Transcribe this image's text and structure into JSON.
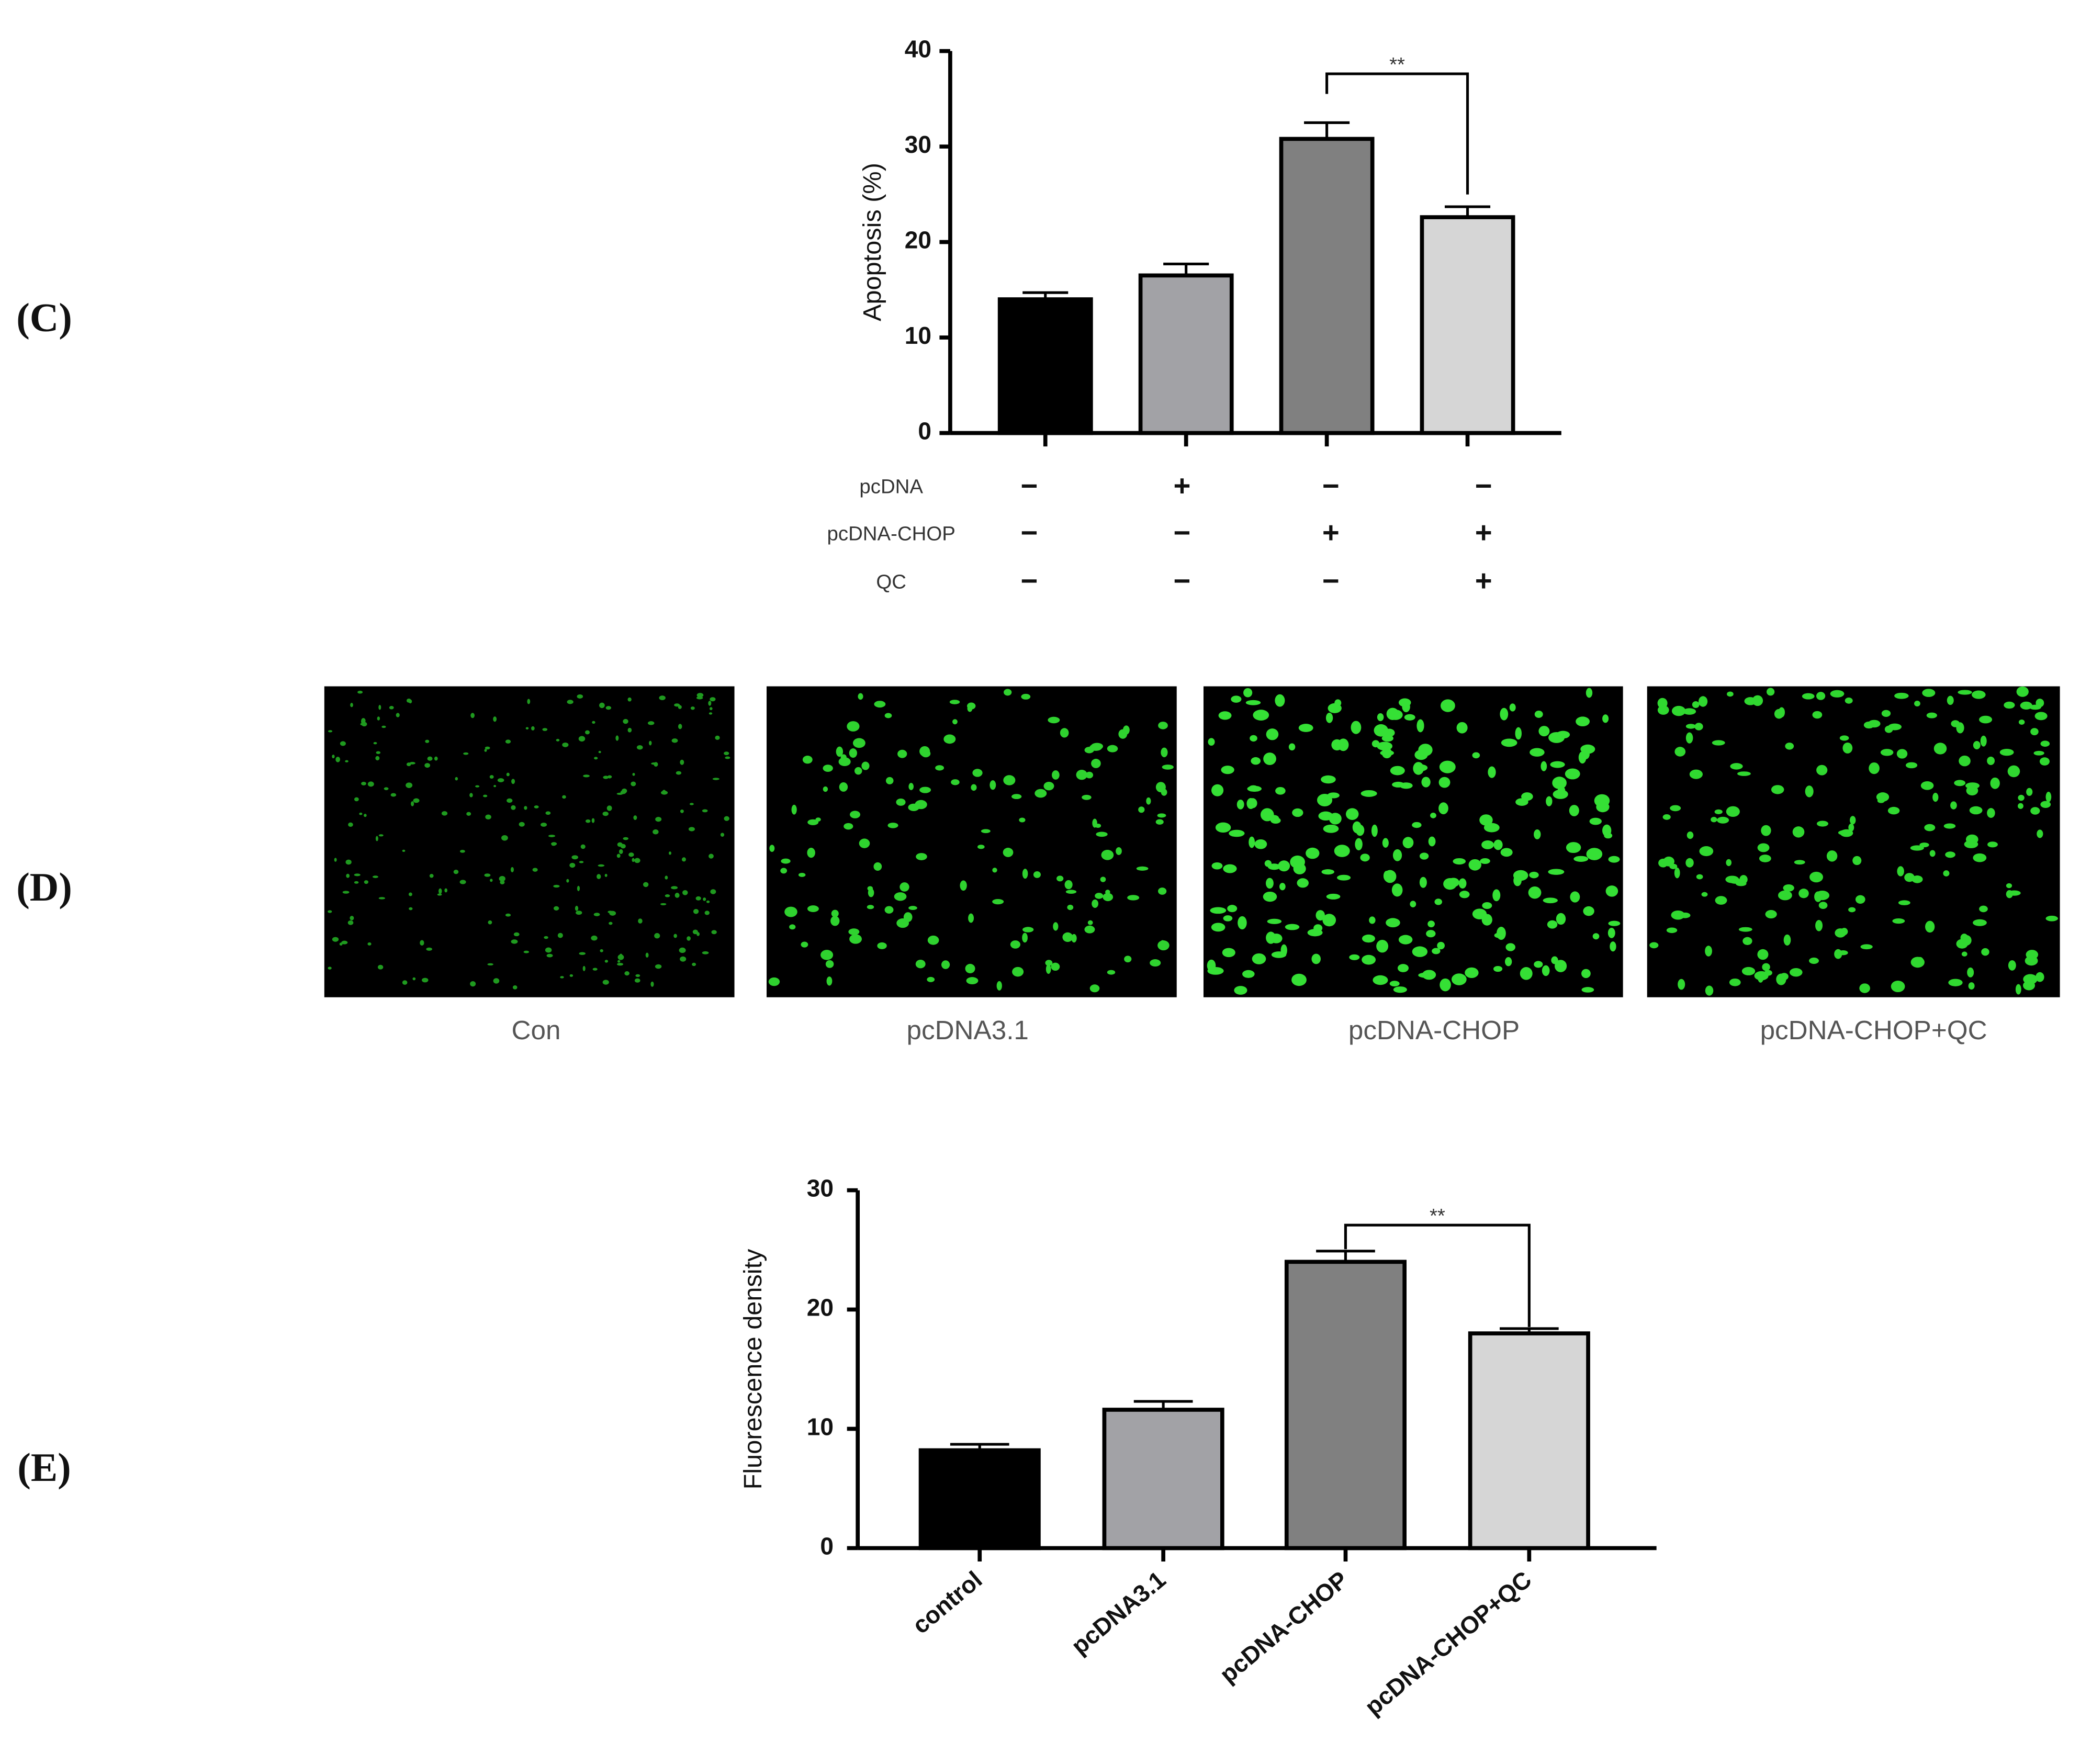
{
  "panel_labels": [
    "(C)",
    "(D)",
    "(E)"
  ],
  "chart_data": [
    {
      "type": "bar",
      "ylabel": "Apoptosis (%)",
      "categories": [
        null,
        null,
        null,
        null
      ],
      "values": [
        14,
        16.5,
        30.8,
        22.6
      ],
      "errors": [
        0.7,
        1.2,
        1.7,
        1.1
      ],
      "colors": [
        "#000000",
        "#a2a2a6",
        "#808080",
        "#d6d6d6"
      ],
      "ylim": [
        0,
        40
      ],
      "yticks": [
        0,
        10,
        20,
        30,
        40
      ],
      "annotation": "**",
      "treatment_table": [
        {
          "name": "pcDNA",
          "signs": [
            "−",
            "+",
            "−",
            "−"
          ]
        },
        {
          "name": "pcDNA-CHOP",
          "signs": [
            "−",
            "−",
            "+",
            "+"
          ]
        },
        {
          "name": "QC",
          "signs": [
            "−",
            "−",
            "−",
            "+"
          ]
        }
      ]
    },
    {
      "type": "bar",
      "ylabel": "Fluorescence density",
      "categories": [
        "control",
        "pcDNA3.1",
        "pcDNA-CHOP",
        "pcDNA-CHOP+QC"
      ],
      "values": [
        8.2,
        11.6,
        24.0,
        18.0
      ],
      "errors": [
        0.5,
        0.7,
        0.9,
        0.4
      ],
      "colors": [
        "#000000",
        "#a2a2a6",
        "#808080",
        "#d6d6d6"
      ],
      "ylim": [
        0,
        30
      ],
      "yticks": [
        0,
        10,
        20,
        30
      ],
      "annotation": "**"
    }
  ],
  "micrographs": {
    "captions": [
      "Con",
      "pcDNA3.1",
      "pcDNA-CHOP",
      "pcDNA-CHOP+QC"
    ]
  }
}
